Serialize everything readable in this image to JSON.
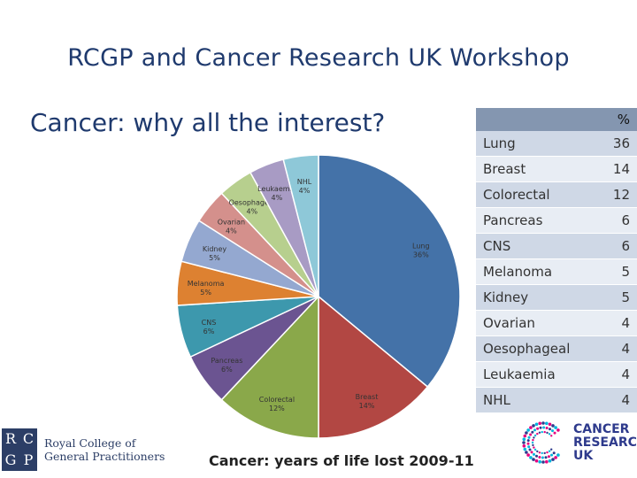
{
  "slide": {
    "title": "RCGP and Cancer Research UK Workshop",
    "subtitle": "Cancer: why all the interest?"
  },
  "chart_data": {
    "type": "pie",
    "title": "Cancer: years of life lost 2009-11",
    "slices": [
      {
        "label": "Lung",
        "value": 36,
        "display": "36%",
        "color": "#4472a8"
      },
      {
        "label": "Breast",
        "value": 14,
        "display": "14%",
        "color": "#b24743"
      },
      {
        "label": "Colorectal",
        "value": 12,
        "display": "12%",
        "color": "#8aa84a"
      },
      {
        "label": "Pancreas",
        "value": 6,
        "display": "6%",
        "color": "#6b5491"
      },
      {
        "label": "CNS",
        "value": 6,
        "display": "6%",
        "color": "#3d98ad"
      },
      {
        "label": "Melanoma",
        "value": 5,
        "display": "5%",
        "color": "#dd8131"
      },
      {
        "label": "Kidney",
        "value": 5,
        "display": "5%",
        "color": "#94a8d0"
      },
      {
        "label": "Ovarian",
        "value": 4,
        "display": "4%",
        "color": "#d4908c"
      },
      {
        "label": "Oesophageal",
        "value": 4,
        "display": "4%",
        "color": "#b7cf8e"
      },
      {
        "label": "Leukaemia",
        "value": 4,
        "display": "4%",
        "color": "#a89bc4"
      },
      {
        "label": "NHL",
        "value": 4,
        "display": "4%",
        "color": "#8ec8d8"
      }
    ]
  },
  "table": {
    "header_name": "",
    "header_value": "%",
    "rows": [
      {
        "name": "Lung",
        "value": "36"
      },
      {
        "name": "Breast",
        "value": "14"
      },
      {
        "name": "Colorectal",
        "value": "12"
      },
      {
        "name": "Pancreas",
        "value": "6"
      },
      {
        "name": "CNS",
        "value": "6"
      },
      {
        "name": "Melanoma",
        "value": "5"
      },
      {
        "name": "Kidney",
        "value": "5"
      },
      {
        "name": "Ovarian",
        "value": "4"
      },
      {
        "name": "Oesophageal",
        "value": "4"
      },
      {
        "name": "Leukaemia",
        "value": "4"
      },
      {
        "name": "NHL",
        "value": "4"
      }
    ]
  },
  "logos": {
    "rcgp_letters": [
      "R",
      "C",
      "G",
      "P"
    ],
    "rcgp_line1": "Royal College of",
    "rcgp_line2": "General Practitioners",
    "cruk_line1": "CANCER",
    "cruk_line2": "RESEARCH",
    "cruk_line3": "UK",
    "cruk_color": "#2e3a8c",
    "cruk_dot_colors": [
      "#e6007e",
      "#00b6de",
      "#2e3a8c"
    ]
  }
}
